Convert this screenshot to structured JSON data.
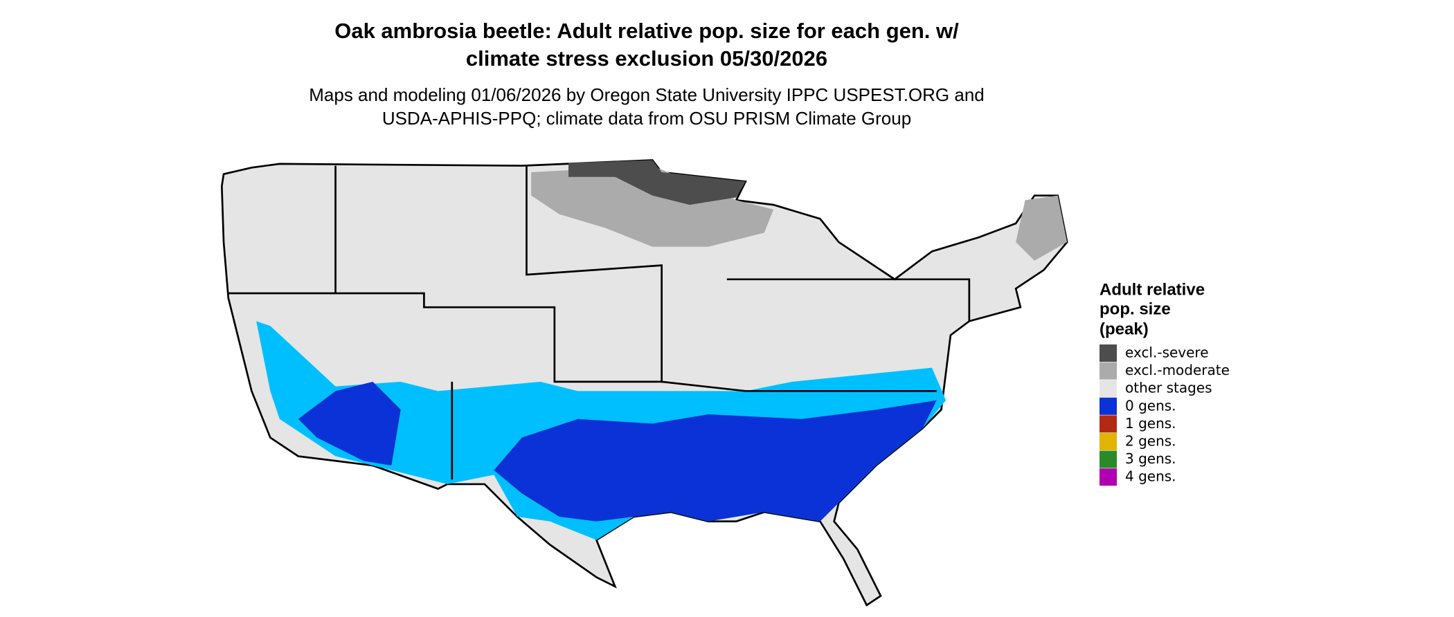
{
  "header": {
    "title": [
      "Oak ambrosia beetle: Adult relative pop. size for each gen. w/",
      "climate stress exclusion 05/30/2026"
    ],
    "subtitle": [
      "Maps and modeling 01/06/2026 by Oregon State University IPPC USPEST.ORG and",
      "USDA-APHIS-PPQ; climate data from OSU PRISM Climate Group"
    ]
  },
  "legend": {
    "title": [
      "Adult relative",
      "pop. size",
      "(peak)"
    ],
    "items": [
      {
        "label": "excl.-severe",
        "color": "#4d4d4d"
      },
      {
        "label": "excl.-moderate",
        "color": "#ababab"
      },
      {
        "label": "other stages",
        "color": "#e5e5e5"
      },
      {
        "label": "0 gens.",
        "color": "#0a32d6"
      },
      {
        "label": "1 gens.",
        "color": "#b22a14"
      },
      {
        "label": "2 gens.",
        "color": "#e0b400"
      },
      {
        "label": "3 gens.",
        "color": "#2a8a2a"
      },
      {
        "label": "4 gens.",
        "color": "#b000b0"
      }
    ]
  }
}
